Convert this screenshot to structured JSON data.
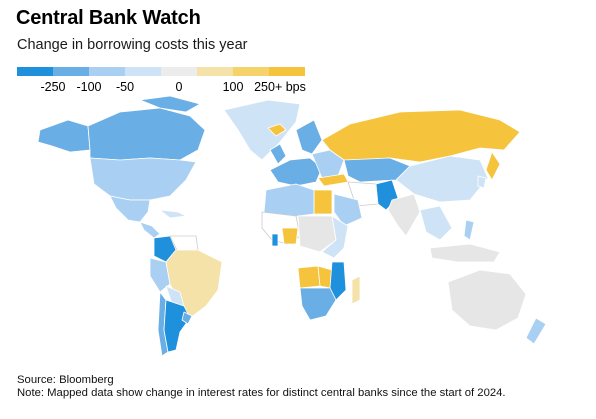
{
  "header": {
    "title": "Central Bank Watch",
    "subtitle": "Change in borrowing costs this year"
  },
  "legend": {
    "swatches": [
      {
        "color": "#1e90dc"
      },
      {
        "color": "#6aaee6"
      },
      {
        "color": "#a9d0f2"
      },
      {
        "color": "#cfe3f6"
      },
      {
        "color": "#ececec"
      },
      {
        "color": "#f4e2a8"
      },
      {
        "color": "#f6d36a"
      },
      {
        "color": "#f5c43c"
      }
    ],
    "labels": [
      "-250",
      "-100",
      "-50",
      "0",
      "100",
      "250+ bps"
    ]
  },
  "map": {
    "colors": {
      "cut_250": "#1e90dc",
      "cut_100": "#6aaee6",
      "cut_50": "#a9d0f2",
      "cut_small": "#cfe3f6",
      "no_change": "#e6e6e6",
      "no_data": "#ffffff",
      "hike_100": "#f4e2a8",
      "hike_250": "#f5c43c"
    }
  },
  "footer": {
    "source": "Source: Bloomberg",
    "note": "Note: Mapped data show change in interest rates for distinct central banks since the start of 2024."
  }
}
